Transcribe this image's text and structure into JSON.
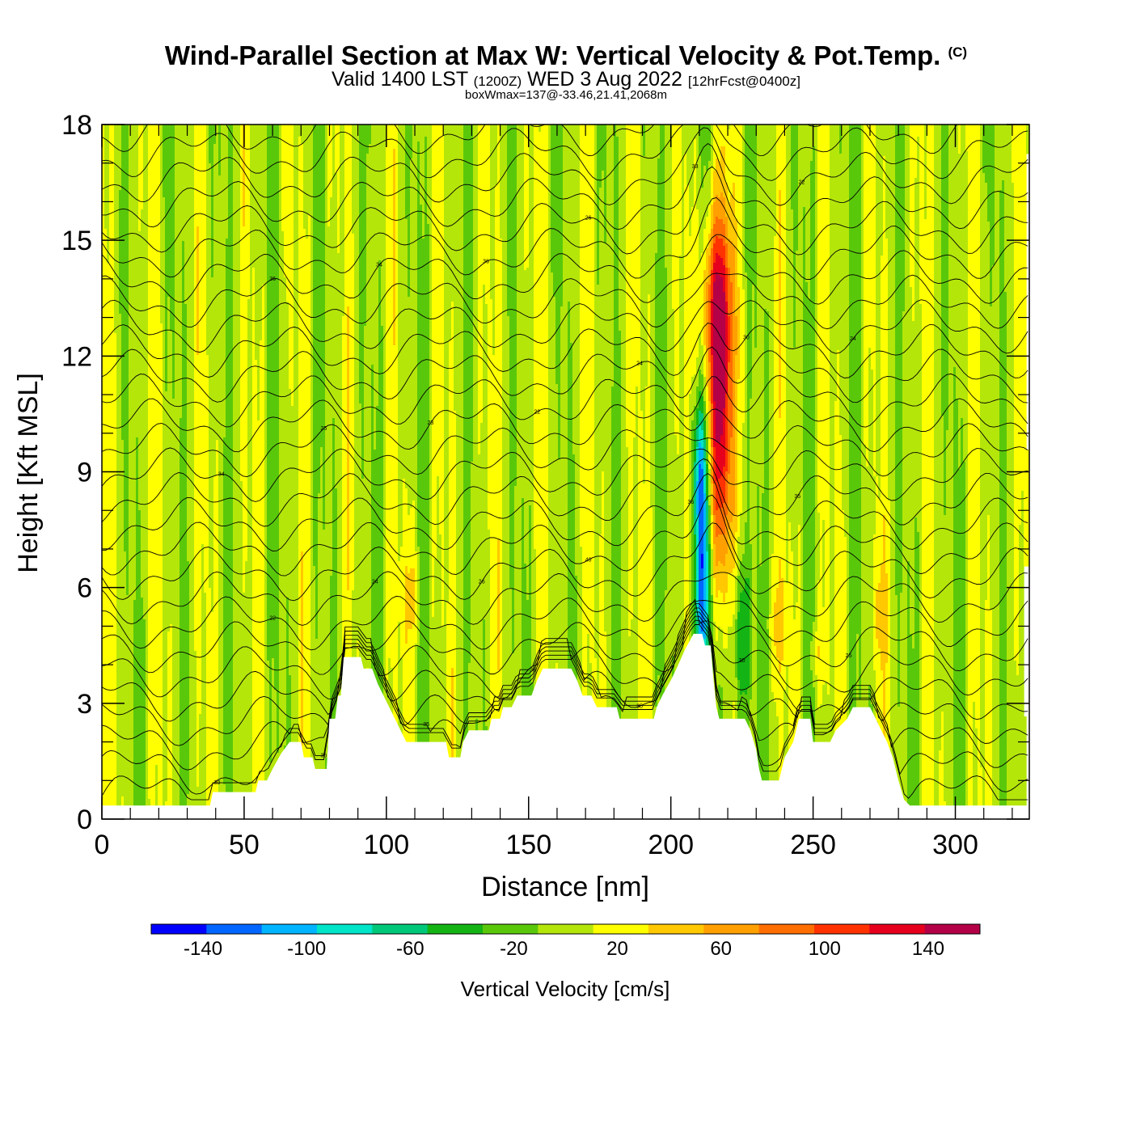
{
  "title": {
    "main": "Wind-Parallel Section at Max W: Vertical Velocity & Pot.Temp.",
    "copyright": "(C)",
    "valid_prefix": "Valid 1400 LST",
    "valid_utc": "(1200Z)",
    "valid_date": "WED 3 Aug 2022",
    "forecast": "[12hrFcst@0400z]",
    "box_info": "boxWmax=137@-33.46,21.41,2068m"
  },
  "chart_data": {
    "type": "heatmap",
    "xlabel": "Distance [nm]",
    "ylabel": "Height [Kft MSL]",
    "xlim": [
      0,
      326
    ],
    "ylim": [
      0,
      18
    ],
    "x_ticks": [
      0,
      50,
      100,
      150,
      200,
      250,
      300
    ],
    "y_ticks": [
      0,
      3,
      6,
      9,
      12,
      15,
      18
    ],
    "colorbar": {
      "title": "Vertical Velocity [cm/s]",
      "levels": [
        -160,
        -140,
        -120,
        -100,
        -80,
        -60,
        -40,
        -20,
        0,
        20,
        40,
        60,
        80,
        100,
        120,
        140,
        160
      ],
      "labels": [
        "-140",
        "-100",
        "-60",
        "-20",
        "20",
        "60",
        "100",
        "140"
      ],
      "label_values": [
        -140,
        -100,
        -60,
        -20,
        20,
        60,
        100,
        140
      ],
      "colors": [
        "#0000ff",
        "#0066ff",
        "#00b4ff",
        "#00e4c8",
        "#00c87a",
        "#14b414",
        "#5ac80a",
        "#b4e60a",
        "#ffff00",
        "#ffc800",
        "#ffa000",
        "#ff6e00",
        "#ff3200",
        "#e6001e",
        "#b40046"
      ]
    },
    "terrain": [
      [
        0,
        0.35
      ],
      [
        38,
        0.35
      ],
      [
        39,
        0.7
      ],
      [
        54,
        0.7
      ],
      [
        55,
        1.0
      ],
      [
        58,
        1.0
      ],
      [
        60,
        1.3
      ],
      [
        63,
        1.7
      ],
      [
        66,
        2.0
      ],
      [
        70,
        2.0
      ],
      [
        71,
        1.6
      ],
      [
        74,
        1.6
      ],
      [
        75,
        1.3
      ],
      [
        79,
        1.3
      ],
      [
        80,
        2.6
      ],
      [
        82,
        2.6
      ],
      [
        83,
        3.2
      ],
      [
        84,
        3.2
      ],
      [
        85,
        4.2
      ],
      [
        91,
        4.2
      ],
      [
        92,
        3.9
      ],
      [
        95,
        3.9
      ],
      [
        97,
        3.5
      ],
      [
        99,
        3.2
      ],
      [
        101,
        2.9
      ],
      [
        103,
        2.6
      ],
      [
        105,
        2.3
      ],
      [
        107,
        2.0
      ],
      [
        121,
        2.0
      ],
      [
        122,
        1.6
      ],
      [
        126,
        1.6
      ],
      [
        127,
        2.0
      ],
      [
        129,
        2.3
      ],
      [
        136,
        2.3
      ],
      [
        137,
        2.6
      ],
      [
        140,
        2.6
      ],
      [
        141,
        2.9
      ],
      [
        144,
        2.9
      ],
      [
        146,
        3.2
      ],
      [
        151,
        3.2
      ],
      [
        153,
        3.6
      ],
      [
        155,
        3.9
      ],
      [
        165,
        3.9
      ],
      [
        167,
        3.6
      ],
      [
        169,
        3.2
      ],
      [
        172,
        3.2
      ],
      [
        174,
        2.9
      ],
      [
        181,
        2.9
      ],
      [
        182,
        2.6
      ],
      [
        194,
        2.6
      ],
      [
        195,
        2.9
      ],
      [
        197,
        3.2
      ],
      [
        200,
        3.6
      ],
      [
        202,
        3.9
      ],
      [
        205,
        4.4
      ],
      [
        208,
        4.8
      ],
      [
        211,
        4.8
      ],
      [
        212,
        4.5
      ],
      [
        214,
        4.5
      ],
      [
        215,
        3.6
      ],
      [
        216,
        2.9
      ],
      [
        217,
        2.6
      ],
      [
        226,
        2.6
      ],
      [
        228,
        2.3
      ],
      [
        230,
        1.8
      ],
      [
        231,
        1.3
      ],
      [
        232,
        1.0
      ],
      [
        238,
        1.0
      ],
      [
        240,
        1.6
      ],
      [
        243,
        2.0
      ],
      [
        245,
        2.6
      ],
      [
        249,
        2.6
      ],
      [
        250,
        2.0
      ],
      [
        256,
        2.0
      ],
      [
        258,
        2.3
      ],
      [
        262,
        2.6
      ],
      [
        264,
        2.9
      ],
      [
        270,
        2.9
      ],
      [
        272,
        2.6
      ],
      [
        274,
        2.3
      ],
      [
        276,
        2.0
      ],
      [
        278,
        1.6
      ],
      [
        280,
        1.0
      ],
      [
        282,
        0.5
      ],
      [
        284,
        0.35
      ],
      [
        326,
        0.35
      ]
    ],
    "features": [
      {
        "x": 217,
        "z": 10.5,
        "sx": 3.0,
        "sz": 3.2,
        "w": 140
      },
      {
        "x": 216,
        "z": 13.5,
        "sx": 4.0,
        "sz": 1.5,
        "w": 60
      },
      {
        "x": 211,
        "z": 6.2,
        "sx": 2.2,
        "sz": 2.4,
        "w": -120
      },
      {
        "x": 210,
        "z": 9.2,
        "sx": 2.0,
        "sz": 1.3,
        "w": -60
      },
      {
        "x": 225,
        "z": 4.6,
        "sx": 2.5,
        "sz": 1.6,
        "w": -60
      },
      {
        "x": 109,
        "z": 5.8,
        "sx": 2.5,
        "sz": 1.2,
        "w": 26
      },
      {
        "x": 273,
        "z": 5.3,
        "sx": 2.0,
        "sz": 1.0,
        "w": 26
      },
      {
        "x": 237,
        "z": 5.0,
        "sx": 2.5,
        "sz": 1.0,
        "w": 26
      },
      {
        "x": 252,
        "z": 4.3,
        "sx": 2.0,
        "sz": 0.8,
        "w": 24
      }
    ],
    "theta_label_values": [
      "30",
      "36",
      "35",
      "36",
      "35",
      "30",
      "25",
      "22",
      "24",
      "26",
      "40",
      "36",
      "35",
      "34",
      "25",
      "23",
      "22",
      "24",
      "30",
      "24",
      "36",
      "34",
      "36",
      "26",
      "33",
      "22"
    ]
  }
}
